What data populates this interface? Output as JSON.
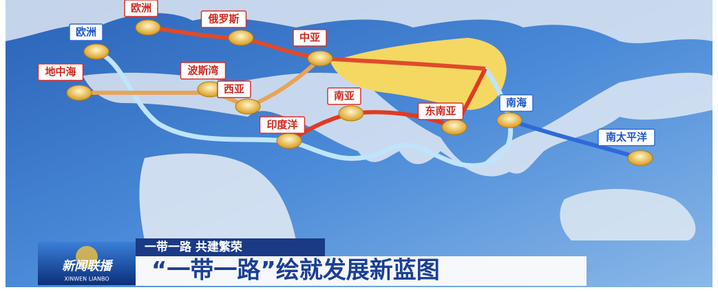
{
  "map": {
    "nodes": [
      {
        "label": "欧洲",
        "route": "land"
      },
      {
        "label": "俄罗斯",
        "route": "land"
      },
      {
        "label": "中亚",
        "route": "land"
      },
      {
        "label": "欧洲",
        "route": "sea"
      },
      {
        "label": "地中海",
        "route": "land"
      },
      {
        "label": "波斯湾",
        "route": "land"
      },
      {
        "label": "西亚",
        "route": "land"
      },
      {
        "label": "南亚",
        "route": "land"
      },
      {
        "label": "印度洋",
        "route": "land"
      },
      {
        "label": "东南亚",
        "route": "land"
      },
      {
        "label": "南海",
        "route": "sea"
      },
      {
        "label": "南太平洋",
        "route": "sea"
      }
    ]
  },
  "banner": {
    "logo": "新闻联播",
    "logo_sub": "XINWEN LIANBO",
    "subtitle": "一带一路  共建繁荣",
    "title": "“一带一路”绘就发展新蓝图"
  }
}
